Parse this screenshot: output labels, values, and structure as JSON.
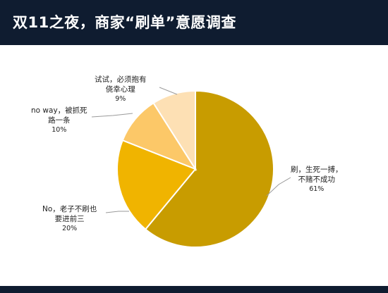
{
  "title": "双11之夜，商家“刷单”意愿调查",
  "chart_data": {
    "type": "pie",
    "start_angle_deg": 0,
    "direction": "clockwise",
    "colors": [
      "#c89c00",
      "#f0b400",
      "#fcc868",
      "#fde0b4"
    ],
    "slices": [
      {
        "label_lines": [
          "刷，生死一搏，",
          "不赌不成功"
        ],
        "value": 61,
        "pct_label": "61%"
      },
      {
        "label_lines": [
          "No，老子不刷也",
          "要进前三"
        ],
        "value": 20,
        "pct_label": "20%"
      },
      {
        "label_lines": [
          "no way，被抓死",
          "路一条"
        ],
        "value": 10,
        "pct_label": "10%"
      },
      {
        "label_lines": [
          "试试，必须抱有",
          "侥幸心理"
        ],
        "value": 9,
        "pct_label": "9%"
      }
    ]
  }
}
